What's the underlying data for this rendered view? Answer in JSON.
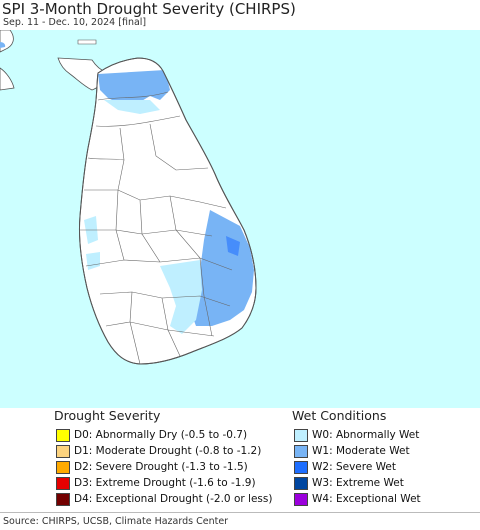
{
  "header": {
    "title": "SPI 3-Month Drought Severity (CHIRPS)",
    "subtitle": "Sep. 11 - Dec. 10, 2024 [final]"
  },
  "map": {
    "sea_color": "#ccffff",
    "land_color": "#ffffff",
    "border_color": "#555555"
  },
  "legend": {
    "drought_title": "Drought Severity",
    "wet_title": "Wet Conditions",
    "drought_items": [
      {
        "label": "D0: Abnormally Dry (-0.5 to -0.7)",
        "color": "#ffff00"
      },
      {
        "label": "D1: Moderate Drought (-0.8 to -1.2)",
        "color": "#fcd37f"
      },
      {
        "label": "D2: Severe Drought (-1.3 to -1.5)",
        "color": "#ffaa00"
      },
      {
        "label": "D3: Extreme Drought (-1.6 to -1.9)",
        "color": "#e60000"
      },
      {
        "label": "D4: Exceptional Drought (-2.0 or less)",
        "color": "#730000"
      }
    ],
    "wet_items": [
      {
        "label": "W0: Abnormally Wet",
        "color": "#bfefff"
      },
      {
        "label": "W1: Moderate Wet",
        "color": "#78b4f5"
      },
      {
        "label": "W2: Severe Wet",
        "color": "#1e6eff"
      },
      {
        "label": "W3: Extreme Wet",
        "color": "#0046a0"
      },
      {
        "label": "W4: Exceptional Wet",
        "color": "#9b00dc"
      }
    ]
  },
  "footer": {
    "source": "Source: CHIRPS, UCSB, Climate Hazards Center"
  }
}
